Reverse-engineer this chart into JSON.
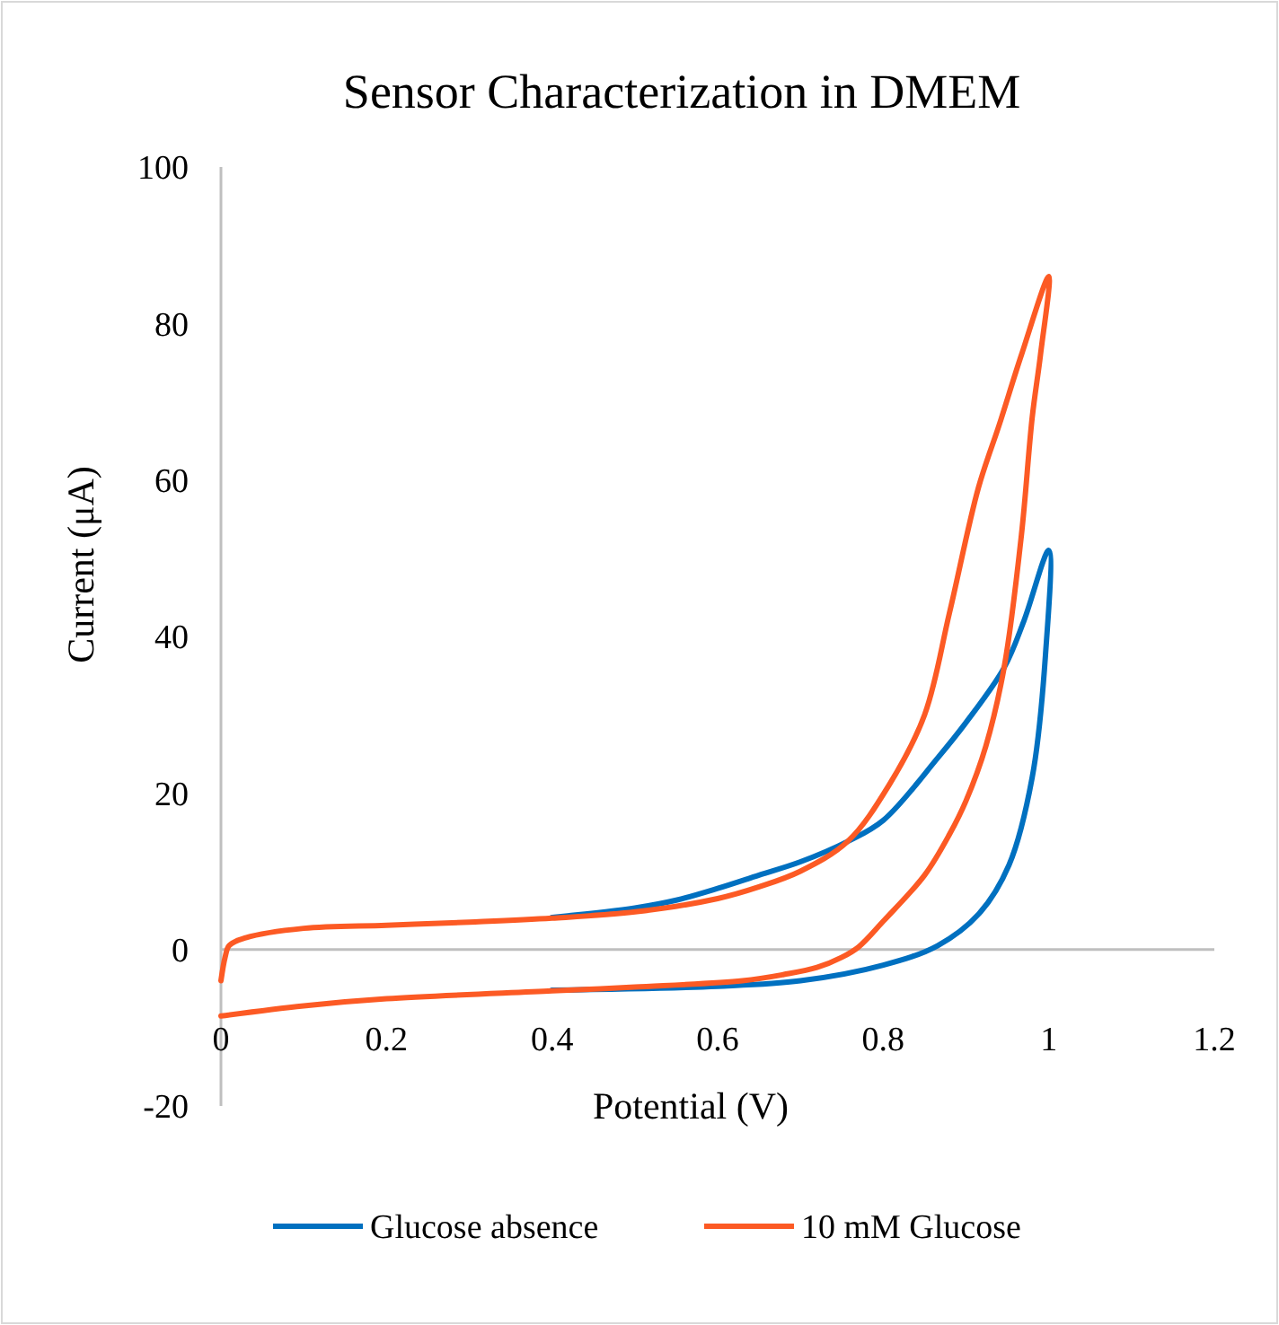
{
  "chart_data": {
    "type": "line",
    "title": "Sensor Characterization in DMEM",
    "xlabel": "Potential (V)",
    "ylabel": "Current (μA)",
    "xlim": [
      0,
      1.2
    ],
    "xticks": [
      0,
      0.2,
      0.4,
      0.6,
      0.8,
      1,
      1.2
    ],
    "ylim": [
      -20,
      100
    ],
    "yticks": [
      -20,
      0,
      20,
      40,
      60,
      80,
      100
    ],
    "grid": false,
    "legend": "bottom",
    "marker": "none",
    "line_style": "solid",
    "series": [
      {
        "name": "Glucose absence",
        "color": "#0070c0",
        "x": [
          0.4,
          0.5,
          0.55,
          0.6,
          0.65,
          0.7,
          0.757,
          0.8,
          0.866,
          0.9,
          0.946,
          0.97,
          1,
          0.996,
          0.98,
          0.952,
          0.916,
          0.866,
          0.8,
          0.7,
          0.6,
          0.4
        ],
        "values": [
          4.1,
          5.3,
          6.3,
          7.8,
          9.5,
          11.2,
          13.8,
          16.5,
          24.5,
          29,
          36,
          42,
          51,
          37.6,
          22,
          10.8,
          4.6,
          0.5,
          -2,
          -4,
          -4.7,
          -5.2
        ]
      },
      {
        "name": "10 mM Glucose",
        "color": "#fc5a24",
        "x": [
          0,
          0.005,
          0.01,
          0.03,
          0.1,
          0.2,
          0.3,
          0.4,
          0.5,
          0.6,
          0.65,
          0.7,
          0.757,
          0.807,
          0.85,
          0.88,
          0.915,
          0.94,
          0.967,
          1,
          0.99,
          0.98,
          0.967,
          0.946,
          0.924,
          0.9,
          0.88,
          0.85,
          0.8,
          0.77,
          0.75,
          0.72,
          0.68,
          0.63,
          0.5,
          0.4,
          0.2,
          0.1,
          0
        ],
        "values": [
          -4,
          -1,
          0.5,
          1.5,
          2.7,
          3.1,
          3.5,
          4,
          4.8,
          6.5,
          8,
          10,
          13.8,
          21,
          30,
          43,
          59,
          67,
          76,
          86,
          76,
          68,
          53,
          36,
          26,
          19,
          14.7,
          9.5,
          3.6,
          0.3,
          -1,
          -2.3,
          -3.2,
          -4,
          -4.8,
          -5.3,
          -6.3,
          -7.2,
          -8.5
        ]
      }
    ]
  }
}
